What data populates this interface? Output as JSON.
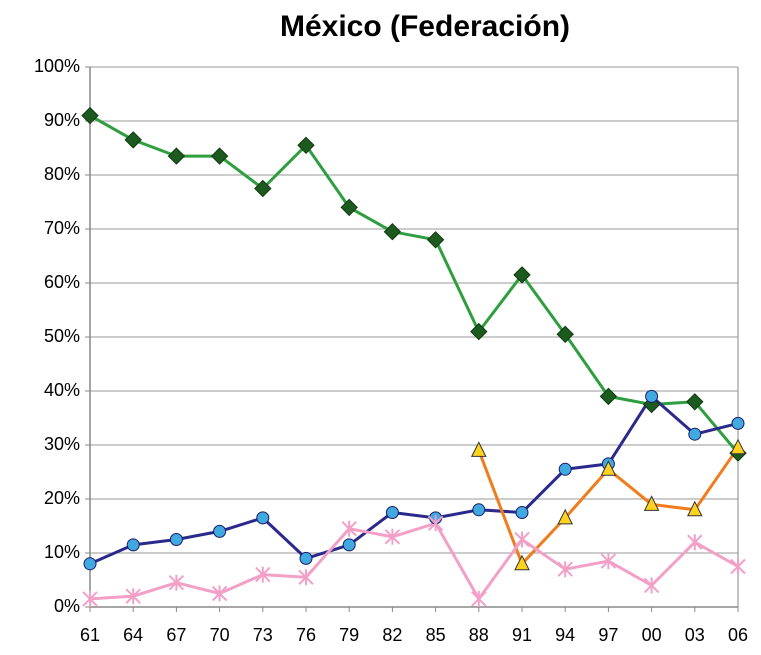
{
  "chart_data": {
    "type": "line",
    "title": "México (Federación)",
    "title_color": "#1f9a3c",
    "categories": [
      "61",
      "64",
      "67",
      "70",
      "73",
      "76",
      "79",
      "82",
      "85",
      "88",
      "91",
      "94",
      "97",
      "00",
      "03",
      "06"
    ],
    "series": [
      {
        "color": "#2e9e3e",
        "marker": "diamond",
        "marker_color": "#1d5a1f",
        "values": [
          91,
          86.5,
          83.5,
          83.5,
          77.5,
          85.5,
          74,
          69.5,
          68,
          51,
          61.5,
          50.5,
          39,
          37.5,
          38,
          28.5
        ]
      },
      {
        "color": "#2b2a8c",
        "marker": "circle",
        "marker_color": "#3fa9e0",
        "values": [
          8,
          11.5,
          12.5,
          14,
          16.5,
          9,
          11.5,
          17.5,
          16.5,
          18,
          17.5,
          25.5,
          26.5,
          39,
          32,
          34
        ]
      },
      {
        "color": "#f07c1c",
        "marker": "triangle",
        "marker_color": "#ffd21f",
        "values": [
          null,
          null,
          null,
          null,
          null,
          null,
          null,
          null,
          null,
          29,
          8,
          16.5,
          25.5,
          19,
          18,
          29.5
        ]
      },
      {
        "color": "#f2a0c8",
        "marker": "asterisk",
        "marker_color": "#f2a0c8",
        "values": [
          1.5,
          2,
          4.5,
          2.5,
          6,
          5.5,
          14.5,
          13,
          15.5,
          1.5,
          12.5,
          7,
          8.5,
          4,
          12,
          7.5
        ]
      }
    ],
    "ylim": [
      0,
      100
    ],
    "yticks": [
      {
        "value": 0,
        "label": "0%"
      },
      {
        "value": 10,
        "label": "10%"
      },
      {
        "value": 20,
        "label": "20%"
      },
      {
        "value": 30,
        "label": "30%"
      },
      {
        "value": 40,
        "label": "40%"
      },
      {
        "value": 50,
        "label": "50%"
      },
      {
        "value": 60,
        "label": "60%"
      },
      {
        "value": 70,
        "label": "70%"
      },
      {
        "value": 80,
        "label": "80%"
      },
      {
        "value": 90,
        "label": "90%"
      },
      {
        "value": 100,
        "label": "100%"
      }
    ],
    "grid": true
  }
}
